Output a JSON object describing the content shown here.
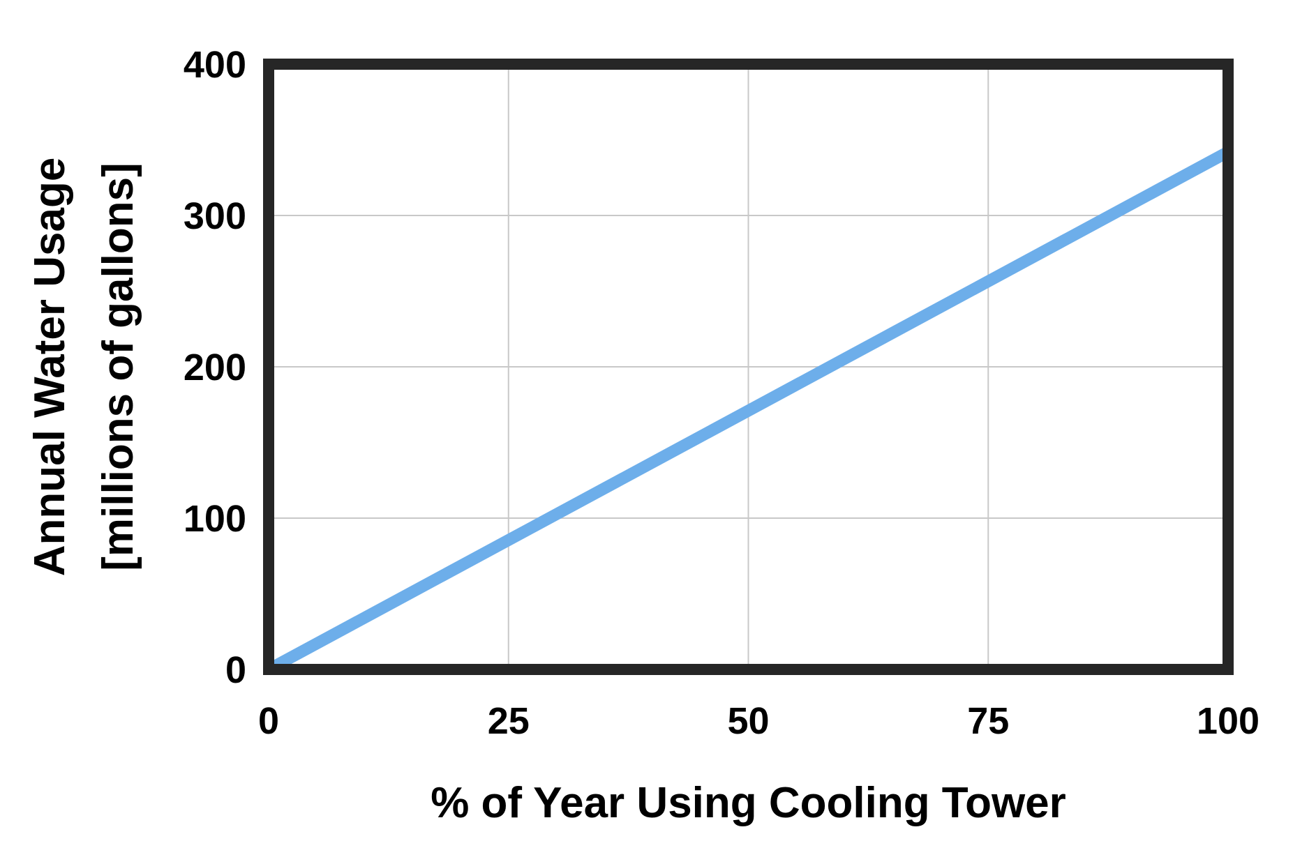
{
  "chart_data": {
    "type": "line",
    "title": "",
    "xlabel": "% of Year Using Cooling Tower",
    "ylabel_lines": [
      "Annual Water Usage",
      "[millions of gallons]"
    ],
    "xlim": [
      0,
      100
    ],
    "ylim": [
      0,
      400
    ],
    "x_ticks": [
      {
        "value": 0,
        "label": "0"
      },
      {
        "value": 25,
        "label": "25"
      },
      {
        "value": 50,
        "label": "50"
      },
      {
        "value": 75,
        "label": "75"
      },
      {
        "value": 100,
        "label": "100"
      }
    ],
    "y_ticks": [
      {
        "value": 0,
        "label": "0"
      },
      {
        "value": 100,
        "label": "100"
      },
      {
        "value": 200,
        "label": "200"
      },
      {
        "value": 300,
        "label": "300"
      },
      {
        "value": 400,
        "label": "400"
      }
    ],
    "grid": true,
    "legend": "none",
    "series": [
      {
        "color": "#6daeea",
        "x": [
          0,
          100
        ],
        "y": [
          0,
          342
        ]
      }
    ],
    "colors": {
      "frame": "#262626",
      "grid": "#c8c8c8"
    }
  }
}
